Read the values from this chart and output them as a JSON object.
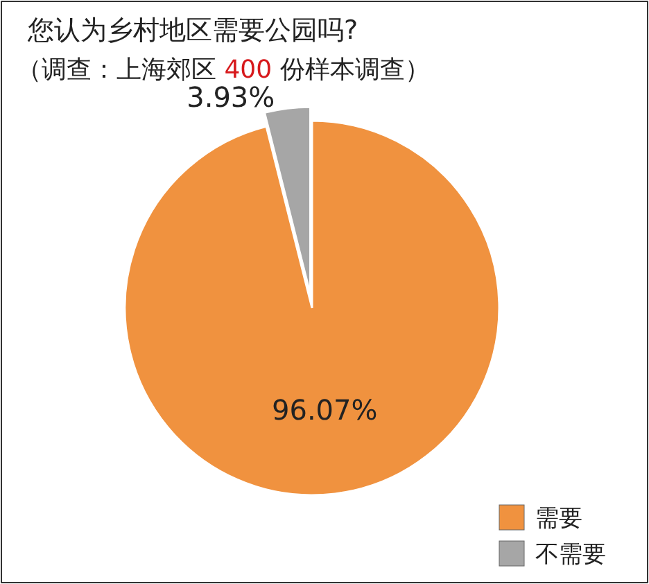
{
  "chart_data": {
    "type": "pie",
    "title": "您认为乡村地区需要公园吗?",
    "subtitle": "（调查：上海郊区 400 份样本调查）",
    "categories": [
      "需要",
      "不需要"
    ],
    "values": [
      96.07,
      3.93
    ],
    "colors": [
      "#f0923f",
      "#a6a6a6"
    ],
    "value_labels": [
      "96.07%",
      "3.93%"
    ],
    "legend": "bottom right"
  }
}
